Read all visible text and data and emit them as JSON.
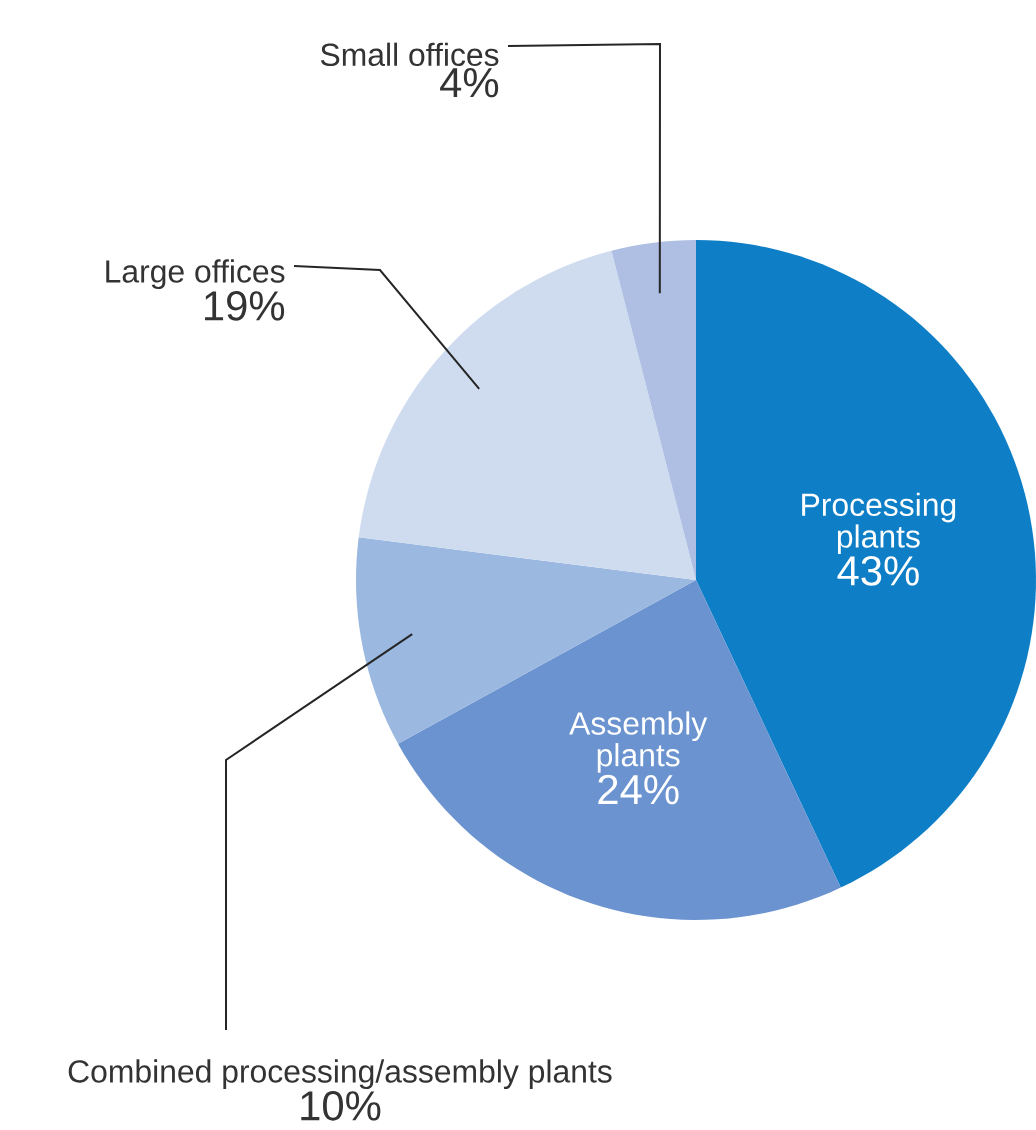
{
  "chart_data": {
    "type": "pie",
    "categories": [
      "Processing plants",
      "Assembly plants",
      "Combined processing/assembly plants",
      "Large offices",
      "Small offices"
    ],
    "values": [
      43,
      24,
      10,
      19,
      4
    ],
    "value_labels": [
      "43%",
      "24%",
      "10%",
      "19%",
      "4%"
    ],
    "colors": [
      "#0e7fc7",
      "#6a93cf",
      "#9bb8e0",
      "#cfdcef",
      "#aebfe3"
    ]
  }
}
